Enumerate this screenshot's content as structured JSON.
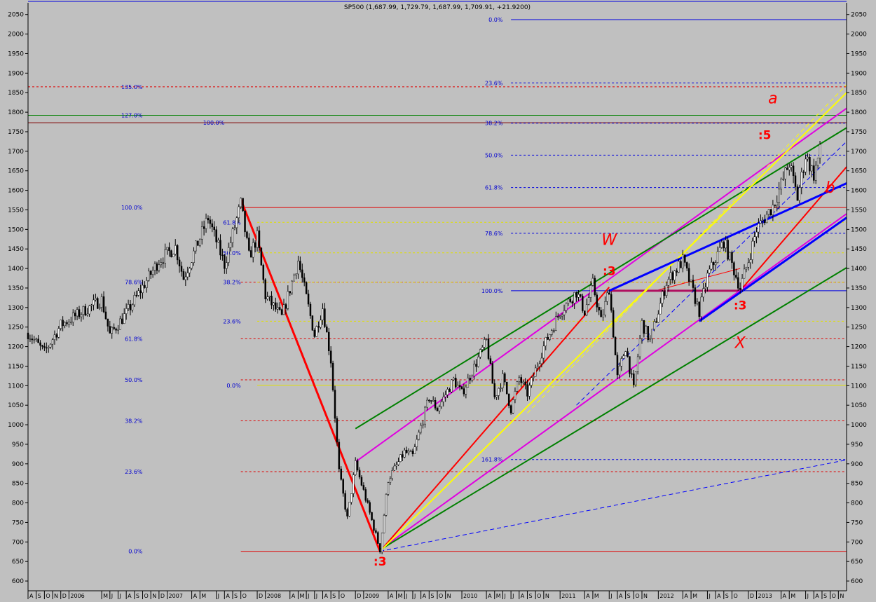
{
  "chart_data": {
    "type": "candlestick",
    "title": "SP500 (1,687.99, 1,729.79, 1,687.99, 1,709.91, +21.9200)",
    "ylim": [
      575,
      2080
    ],
    "y_ticks": [
      600,
      650,
      700,
      750,
      800,
      850,
      900,
      950,
      1000,
      1050,
      1100,
      1150,
      1200,
      1250,
      1300,
      1350,
      1400,
      1450,
      1500,
      1550,
      1600,
      1650,
      1700,
      1750,
      1800,
      1850,
      1900,
      1950,
      2000,
      2050
    ],
    "x_range": [
      "2005-08",
      "2013-12"
    ],
    "x_ticks": [
      {
        "label": "A",
        "t": "2005-08"
      },
      {
        "label": "S",
        "t": "2005-09"
      },
      {
        "label": "O",
        "t": "2005-10"
      },
      {
        "label": "N",
        "t": "2005-11"
      },
      {
        "label": "D",
        "t": "2005-12"
      },
      {
        "label": "2006",
        "t": "2006-01"
      },
      {
        "label": "M",
        "t": "2006-05"
      },
      {
        "label": "J",
        "t": "2006-06"
      },
      {
        "label": "J",
        "t": "2006-07"
      },
      {
        "label": "A",
        "t": "2006-08"
      },
      {
        "label": "S",
        "t": "2006-09"
      },
      {
        "label": "O",
        "t": "2006-10"
      },
      {
        "label": "N",
        "t": "2006-11"
      },
      {
        "label": "D",
        "t": "2006-12"
      },
      {
        "label": "2007",
        "t": "2007-01"
      },
      {
        "label": "A",
        "t": "2007-04"
      },
      {
        "label": "M",
        "t": "2007-05"
      },
      {
        "label": "J",
        "t": "2007-07"
      },
      {
        "label": "A",
        "t": "2007-08"
      },
      {
        "label": "S",
        "t": "2007-09"
      },
      {
        "label": "O",
        "t": "2007-10"
      },
      {
        "label": "D",
        "t": "2007-12"
      },
      {
        "label": "2008",
        "t": "2008-01"
      },
      {
        "label": "A",
        "t": "2008-04"
      },
      {
        "label": "M",
        "t": "2008-05"
      },
      {
        "label": "J",
        "t": "2008-06"
      },
      {
        "label": "J",
        "t": "2008-07"
      },
      {
        "label": "A",
        "t": "2008-08"
      },
      {
        "label": "S",
        "t": "2008-09"
      },
      {
        "label": "O",
        "t": "2008-10"
      },
      {
        "label": "D",
        "t": "2008-12"
      },
      {
        "label": "2009",
        "t": "2009-01"
      },
      {
        "label": "A",
        "t": "2009-04"
      },
      {
        "label": "M",
        "t": "2009-05"
      },
      {
        "label": "J",
        "t": "2009-06"
      },
      {
        "label": "J",
        "t": "2009-07"
      },
      {
        "label": "A",
        "t": "2009-08"
      },
      {
        "label": "S",
        "t": "2009-09"
      },
      {
        "label": "O",
        "t": "2009-10"
      },
      {
        "label": "N",
        "t": "2009-11"
      },
      {
        "label": "2010",
        "t": "2010-01"
      },
      {
        "label": "A",
        "t": "2010-04"
      },
      {
        "label": "M",
        "t": "2010-05"
      },
      {
        "label": "J",
        "t": "2010-06"
      },
      {
        "label": "J",
        "t": "2010-07"
      },
      {
        "label": "A",
        "t": "2010-08"
      },
      {
        "label": "S",
        "t": "2010-09"
      },
      {
        "label": "O",
        "t": "2010-10"
      },
      {
        "label": "N",
        "t": "2010-11"
      },
      {
        "label": "2011",
        "t": "2011-01"
      },
      {
        "label": "A",
        "t": "2011-04"
      },
      {
        "label": "M",
        "t": "2011-05"
      },
      {
        "label": "J",
        "t": "2011-07"
      },
      {
        "label": "A",
        "t": "2011-08"
      },
      {
        "label": "S",
        "t": "2011-09"
      },
      {
        "label": "O",
        "t": "2011-10"
      },
      {
        "label": "N",
        "t": "2011-11"
      },
      {
        "label": "2012",
        "t": "2012-01"
      },
      {
        "label": "A",
        "t": "2012-04"
      },
      {
        "label": "M",
        "t": "2012-05"
      },
      {
        "label": "J",
        "t": "2012-07"
      },
      {
        "label": "A",
        "t": "2012-08"
      },
      {
        "label": "S",
        "t": "2012-09"
      },
      {
        "label": "O",
        "t": "2012-10"
      },
      {
        "label": "D",
        "t": "2012-12"
      },
      {
        "label": "2013",
        "t": "2013-01"
      },
      {
        "label": "A",
        "t": "2013-04"
      },
      {
        "label": "M",
        "t": "2013-05"
      },
      {
        "label": "J",
        "t": "2013-07"
      },
      {
        "label": "A",
        "t": "2013-08"
      },
      {
        "label": "S",
        "t": "2013-09"
      },
      {
        "label": "O",
        "t": "2013-10"
      },
      {
        "label": "N",
        "t": "2013-11"
      }
    ],
    "price_path": [
      [
        "2005-08",
        1235
      ],
      [
        "2005-10",
        1185
      ],
      [
        "2005-12",
        1255
      ],
      [
        "2006-05",
        1320
      ],
      [
        "2006-06",
        1230
      ],
      [
        "2006-08",
        1285
      ],
      [
        "2006-12",
        1420
      ],
      [
        "2007-02",
        1455
      ],
      [
        "2007-03",
        1375
      ],
      [
        "2007-06",
        1530
      ],
      [
        "2007-08",
        1410
      ],
      [
        "2007-10",
        1565
      ],
      [
        "2007-11",
        1430
      ],
      [
        "2007-12",
        1480
      ],
      [
        "2008-01",
        1330
      ],
      [
        "2008-03",
        1275
      ],
      [
        "2008-05",
        1420
      ],
      [
        "2008-07",
        1230
      ],
      [
        "2008-08",
        1300
      ],
      [
        "2008-09",
        1165
      ],
      [
        "2008-10",
        880
      ],
      [
        "2008-11",
        760
      ],
      [
        "2008-12",
        900
      ],
      [
        "2009-01",
        830
      ],
      [
        "2009-03",
        680
      ],
      [
        "2009-04",
        860
      ],
      [
        "2009-06",
        930
      ],
      [
        "2009-07",
        920
      ],
      [
        "2009-09",
        1070
      ],
      [
        "2009-10",
        1040
      ],
      [
        "2009-12",
        1115
      ],
      [
        "2010-01",
        1080
      ],
      [
        "2010-04",
        1215
      ],
      [
        "2010-05",
        1070
      ],
      [
        "2010-06",
        1120
      ],
      [
        "2010-07",
        1040
      ],
      [
        "2010-08",
        1120
      ],
      [
        "2010-09",
        1080
      ],
      [
        "2010-11",
        1200
      ],
      [
        "2011-01",
        1290
      ],
      [
        "2011-03",
        1340
      ],
      [
        "2011-04",
        1290
      ],
      [
        "2011-05",
        1360
      ],
      [
        "2011-06",
        1265
      ],
      [
        "2011-07",
        1350
      ],
      [
        "2011-08",
        1120
      ],
      [
        "2011-09",
        1200
      ],
      [
        "2011-10",
        1090
      ],
      [
        "2011-11",
        1260
      ],
      [
        "2011-12",
        1215
      ],
      [
        "2012-02",
        1365
      ],
      [
        "2012-04",
        1420
      ],
      [
        "2012-06",
        1290
      ],
      [
        "2012-07",
        1380
      ],
      [
        "2012-09",
        1470
      ],
      [
        "2012-11",
        1350
      ],
      [
        "2012-12",
        1420
      ],
      [
        "2013-01",
        1500
      ],
      [
        "2013-03",
        1560
      ],
      [
        "2013-05",
        1670
      ],
      [
        "2013-06",
        1580
      ],
      [
        "2013-07",
        1690
      ],
      [
        "2013-08",
        1640
      ],
      [
        "2013-09",
        1720
      ]
    ],
    "fibonacci_levels": [
      {
        "label": "135.0%",
        "y": 1865,
        "color": "#e00000",
        "dash": true,
        "label_t": "2006-10",
        "x_from": "2005-08"
      },
      {
        "label": "127.0%",
        "y": 1792,
        "color": "#008000",
        "dash": false,
        "label_t": "2006-10",
        "x_from": "2005-08"
      },
      {
        "label": "100.0%",
        "y": 1773,
        "color": "#800000",
        "dash": false,
        "label_t": "2007-08",
        "x_from": "2005-08"
      },
      {
        "label": "100.0%",
        "y": 1556,
        "color": "#e00000",
        "dash": false,
        "label_t": "2006-10",
        "x_from": "2007-10"
      },
      {
        "label": "61.8%",
        "y": 1220,
        "color": "#e00000",
        "dash": true,
        "label_t": "2006-10",
        "x_from": "2007-10"
      },
      {
        "label": "50.0%",
        "y": 1115,
        "color": "#e00000",
        "dash": true,
        "label_t": "2006-10",
        "x_from": "2007-10"
      },
      {
        "label": "38.2%",
        "y": 1010,
        "color": "#e00000",
        "dash": true,
        "label_t": "2006-10",
        "x_from": "2007-10"
      },
      {
        "label": "23.6%",
        "y": 880,
        "color": "#e00000",
        "dash": true,
        "label_t": "2006-10",
        "x_from": "2007-10"
      },
      {
        "label": "0.0%",
        "y": 676,
        "color": "#e00000",
        "dash": false,
        "label_t": "2006-10",
        "x_from": "2007-10"
      },
      {
        "label": "78.6%",
        "y": 1365,
        "color": "#e00000",
        "dash": true,
        "label_t": "2006-10",
        "x_from": "2007-10"
      },
      {
        "label": "61.8%",
        "y": 1518,
        "color": "#e0e000",
        "dash": true,
        "label_t": "2007-10",
        "x_from": "2007-12"
      },
      {
        "label": "50.0%",
        "y": 1440,
        "color": "#e0e000",
        "dash": true,
        "label_t": "2007-10",
        "x_from": "2007-12"
      },
      {
        "label": "38.2%",
        "y": 1365,
        "color": "#e0e000",
        "dash": true,
        "label_t": "2007-10",
        "x_from": "2007-12"
      },
      {
        "label": "23.6%",
        "y": 1265,
        "color": "#e0e000",
        "dash": true,
        "label_t": "2007-10",
        "x_from": "2007-12"
      },
      {
        "label": "0.0%",
        "y": 1101,
        "color": "#e0e000",
        "dash": false,
        "label_t": "2007-10",
        "x_from": "2007-12"
      },
      {
        "label": "0.0%",
        "y": 2037,
        "color": "#0000e0",
        "dash": false,
        "label_t": "2010-06",
        "x_from": "2010-07"
      },
      {
        "label": "23.6%",
        "y": 1875,
        "color": "#0000e0",
        "dash": true,
        "label_t": "2010-06",
        "x_from": "2010-07"
      },
      {
        "label": "38.2%",
        "y": 1772,
        "color": "#0000e0",
        "dash": true,
        "label_t": "2010-06",
        "x_from": "2010-07"
      },
      {
        "label": "50.0%",
        "y": 1690,
        "color": "#0000e0",
        "dash": true,
        "label_t": "2010-06",
        "x_from": "2010-07"
      },
      {
        "label": "61.8%",
        "y": 1607,
        "color": "#0000e0",
        "dash": true,
        "label_t": "2010-06",
        "x_from": "2010-07"
      },
      {
        "label": "78.6%",
        "y": 1490,
        "color": "#0000e0",
        "dash": true,
        "label_t": "2010-06",
        "x_from": "2010-07"
      },
      {
        "label": "100.0%",
        "y": 1343,
        "color": "#0000e0",
        "dash": false,
        "label_t": "2010-06",
        "x_from": "2010-07"
      },
      {
        "label": "161.8%",
        "y": 911,
        "color": "#0000e0",
        "dash": true,
        "label_t": "2010-06",
        "x_from": "2010-07"
      }
    ],
    "trend_lines": [
      {
        "color": "#ff0000",
        "width": 3,
        "dash": false,
        "p": [
          [
            "2007-10",
            1576
          ],
          [
            "2009-03",
            676
          ]
        ]
      },
      {
        "color": "#ff0000",
        "width": 2,
        "dash": false,
        "p": [
          [
            "2009-03",
            676
          ],
          [
            "2011-07",
            1352
          ]
        ]
      },
      {
        "color": "#ff0000",
        "width": 2,
        "dash": false,
        "p": [
          [
            "2012-11",
            1343
          ],
          [
            "2013-12",
            1660
          ]
        ]
      },
      {
        "color": "#ff0000",
        "width": 1,
        "dash": false,
        "p": [
          [
            "2012-01",
            1345
          ],
          [
            "2012-11",
            1400
          ]
        ]
      },
      {
        "color": "#b01060",
        "width": 3,
        "dash": false,
        "p": [
          [
            "2011-07",
            1343
          ],
          [
            "2012-11",
            1343
          ]
        ]
      },
      {
        "color": "#e000e0",
        "width": 2,
        "dash": false,
        "p": [
          [
            "2008-12",
            905
          ],
          [
            "2013-12",
            1810
          ]
        ]
      },
      {
        "color": "#e000e0",
        "width": 2,
        "dash": false,
        "p": [
          [
            "2009-03",
            680
          ],
          [
            "2013-12",
            1540
          ]
        ]
      },
      {
        "color": "#008000",
        "width": 2,
        "dash": false,
        "p": [
          [
            "2008-12",
            990
          ],
          [
            "2013-12",
            1760
          ]
        ]
      },
      {
        "color": "#008000",
        "width": 2,
        "dash": false,
        "p": [
          [
            "2009-03",
            680
          ],
          [
            "2013-12",
            1402
          ]
        ]
      },
      {
        "color": "#ffff00",
        "width": 2,
        "dash": false,
        "p": [
          [
            "2009-03",
            676
          ],
          [
            "2013-12",
            1850
          ]
        ]
      },
      {
        "color": "#ffff00",
        "width": 1,
        "dash": true,
        "p": [
          [
            "2010-09",
            1030
          ],
          [
            "2013-12",
            1870
          ]
        ]
      },
      {
        "color": "#0000ff",
        "width": 3,
        "dash": false,
        "p": [
          [
            "2011-07",
            1343
          ],
          [
            "2013-12",
            1618
          ]
        ]
      },
      {
        "color": "#0000ff",
        "width": 3,
        "dash": false,
        "p": [
          [
            "2012-06",
            1265
          ],
          [
            "2013-12",
            1530
          ]
        ]
      },
      {
        "color": "#0000ff",
        "width": 1,
        "dash": true,
        "p": [
          [
            "2011-03",
            1050
          ],
          [
            "2013-12",
            1725
          ]
        ]
      },
      {
        "color": "#0000ff",
        "width": 1,
        "dash": true,
        "p": [
          [
            "2009-03",
            676
          ],
          [
            "2013-12",
            910
          ]
        ]
      }
    ],
    "annotations": [
      {
        "text": "a",
        "t": "2013-03",
        "y": 1823,
        "color": "#ff0000",
        "size": 22,
        "italic": true
      },
      {
        "text": ":5",
        "t": "2013-02",
        "y": 1731,
        "color": "#ff0000",
        "size": 17,
        "italic": false
      },
      {
        "text": "b",
        "t": "2013-10",
        "y": 1594,
        "color": "#ff0000",
        "size": 22,
        "italic": true
      },
      {
        "text": "W",
        "t": "2011-07",
        "y": 1460,
        "color": "#ff0000",
        "size": 22,
        "italic": true
      },
      {
        "text": ":3",
        "t": "2011-07",
        "y": 1383,
        "color": "#ff0000",
        "size": 17,
        "italic": false
      },
      {
        "text": ":3",
        "t": "2012-11",
        "y": 1295,
        "color": "#ff0000",
        "size": 17,
        "italic": false
      },
      {
        "text": "X",
        "t": "2012-11",
        "y": 1197,
        "color": "#ff0000",
        "size": 22,
        "italic": true
      },
      {
        "text": ":3",
        "t": "2009-03",
        "y": 640,
        "color": "#ff0000",
        "size": 17,
        "italic": false
      }
    ]
  }
}
